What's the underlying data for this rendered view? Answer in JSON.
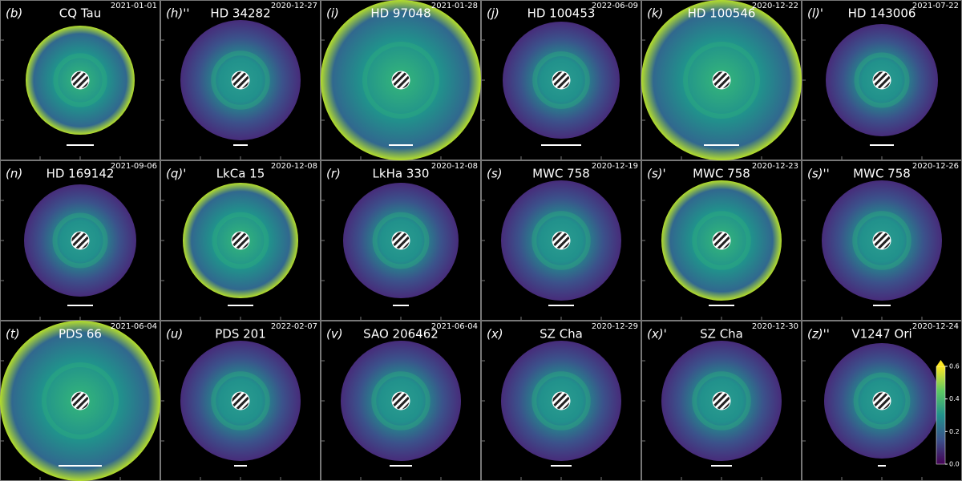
{
  "panels": [
    {
      "label": "(b)",
      "name": "CQ Tau",
      "date": "2021-01-01"
    },
    {
      "label": "(h)''",
      "name": "HD 34282",
      "date": "2020-12-27"
    },
    {
      "label": "(i)",
      "name": "HD 97048",
      "date": "2021-01-28"
    },
    {
      "label": "(j)",
      "name": "HD 100453",
      "date": "2022-06-09"
    },
    {
      "label": "(k)",
      "name": "HD 100546",
      "date": "2020-12-22"
    },
    {
      "label": "(l)'",
      "name": "HD 143006",
      "date": "2021-07-22"
    },
    {
      "label": "(n)",
      "name": "HD 169142",
      "date": "2021-09-06"
    },
    {
      "label": "(q)'",
      "name": "LkCa 15",
      "date": "2020-12-08"
    },
    {
      "label": "(r)",
      "name": "LkHa 330",
      "date": "2020-12-08"
    },
    {
      "label": "(s)",
      "name": "MWC 758",
      "date": "2020-12-19"
    },
    {
      "label": "(s)'",
      "name": "MWC 758",
      "date": "2020-12-23"
    },
    {
      "label": "(s)''",
      "name": "MWC 758",
      "date": "2020-12-26"
    },
    {
      "label": "(t)",
      "name": "PDS 66",
      "date": "2021-06-04"
    },
    {
      "label": "(u)",
      "name": "PDS 201",
      "date": "2022-02-07"
    },
    {
      "label": "(v)",
      "name": "SAO 206462",
      "date": "2021-06-04"
    },
    {
      "label": "(x)",
      "name": "SZ Cha",
      "date": "2020-12-29"
    },
    {
      "label": "(x)'",
      "name": "SZ Cha",
      "date": "2020-12-30"
    },
    {
      "label": "(z)''",
      "name": "V1247 Ori",
      "date": "2020-12-24"
    }
  ],
  "colorbar": {
    "lim": [
      0,
      0.6
    ],
    "ticks": [
      {
        "value": 0,
        "label": "0.0"
      },
      0.2,
      0.4,
      0.6
    ]
  }
}
